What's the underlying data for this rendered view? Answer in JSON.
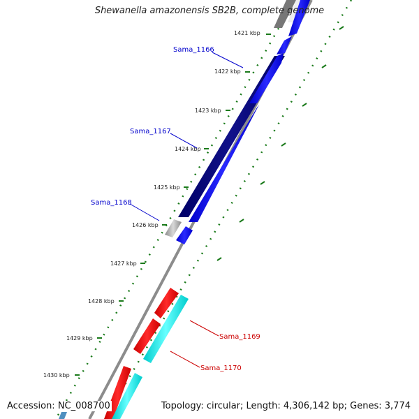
{
  "title": "Shewanella amazonensis SB2B, complete genome",
  "footer": {
    "accession": "Accession: NC_008700",
    "topology": "Topology: circular; Length: 4,306,142 bp; Genes: 3,774"
  },
  "ticks": [
    {
      "label": "1421 kbp"
    },
    {
      "label": "1422 kbp"
    },
    {
      "label": "1423 kbp"
    },
    {
      "label": "1424 kbp"
    },
    {
      "label": "1425 kbp"
    },
    {
      "label": "1426 kbp"
    },
    {
      "label": "1427 kbp"
    },
    {
      "label": "1428 kbp"
    },
    {
      "label": "1429 kbp"
    },
    {
      "label": "1430 kbp"
    }
  ],
  "genes": [
    {
      "label": "Sama_1166",
      "color": "#0000cc"
    },
    {
      "label": "Sama_1167",
      "color": "#0000cc"
    },
    {
      "label": "Sama_1168",
      "color": "#0000cc"
    },
    {
      "label": "Sama_1169",
      "color": "#cc0000"
    },
    {
      "label": "Sama_1170",
      "color": "#cc0000"
    }
  ],
  "colors": {
    "dark_blue": "#0a0a80",
    "blue": "#0000ff",
    "red": "#ff0000",
    "cyan": "#00ffff",
    "grey": "#bdbdbd",
    "backbone": "#8c8c8c",
    "tick_green": "#1a7a1a"
  }
}
